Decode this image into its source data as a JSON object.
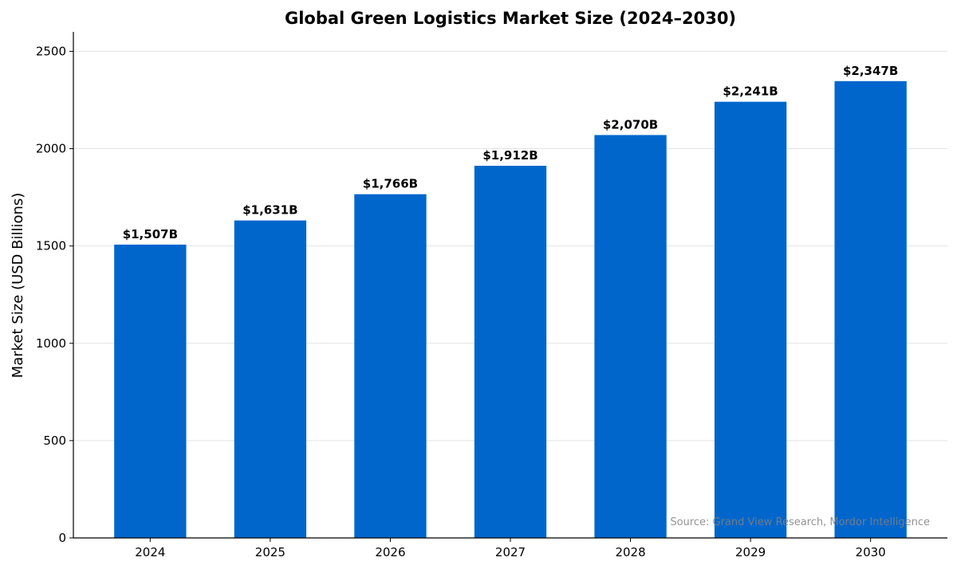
{
  "chart_data": {
    "type": "bar",
    "title": "Global Green Logistics Market Size (2024–2030)",
    "xlabel": "",
    "ylabel": "Market Size (USD Billions)",
    "categories": [
      "2024",
      "2025",
      "2026",
      "2027",
      "2028",
      "2029",
      "2030"
    ],
    "values": [
      1507,
      1631,
      1766,
      1912,
      2070,
      2241,
      2347
    ],
    "data_labels": [
      "$1,507B",
      "$1,631B",
      "$1,766B",
      "$1,912B",
      "$2,070B",
      "$2,241B",
      "$2,347B"
    ],
    "ylim": [
      0,
      2600
    ],
    "yticks": [
      0,
      500,
      1000,
      1500,
      2000,
      2500
    ],
    "grid": "horizontal",
    "bar_color": "#0066CC",
    "annotation": "Source: Grand View Research, Mordor Intelligence"
  }
}
